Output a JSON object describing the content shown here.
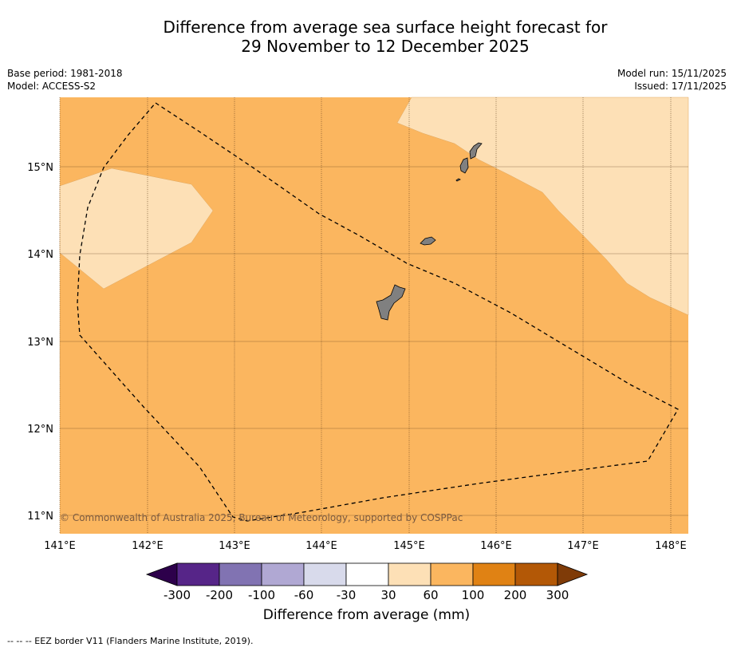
{
  "header": {
    "title_line1": "Difference from average sea surface height forecast for",
    "title_line2": "29 November to 12 December 2025",
    "base_period": "Base period: 1981-2018",
    "model": "Model: ACCESS-S2",
    "model_run": "Model run: 15/11/2025",
    "issued": "Issued: 17/11/2025"
  },
  "map": {
    "copyright": "© Commonwealth of Australia 2025, Bureau of Meteorology, supported by COSPPac",
    "x_ticks": [
      "141°E",
      "142°E",
      "143°E",
      "144°E",
      "145°E",
      "146°E",
      "147°E",
      "148°E"
    ],
    "y_ticks": [
      "15°N",
      "14°N",
      "13°N",
      "12°N",
      "11°N"
    ],
    "lon_range": [
      141,
      148.2
    ],
    "lat_range": [
      10.8,
      15.8
    ]
  },
  "colorbar": {
    "ticks": [
      "-300",
      "-200",
      "-100",
      "-60",
      "-30",
      "30",
      "60",
      "100",
      "200",
      "300"
    ],
    "colors": [
      "#562588",
      "#8173b2",
      "#b0a8d3",
      "#d8daeb",
      "#ffffff",
      "#fde0b6",
      "#fbb65f",
      "#e08214",
      "#b35806"
    ],
    "low_extend": "#2d004b",
    "high_extend": "#7f3b08",
    "label": "Difference from average (mm)"
  },
  "legend": {
    "footnote": "-- -- -- EEZ border V11 (Flanders Marine Institute, 2019)."
  },
  "colors": {
    "main_fill": "#fbb65f",
    "light_fill": "#fde0b6",
    "land": "#808080",
    "grid": "#7a4a1a"
  }
}
